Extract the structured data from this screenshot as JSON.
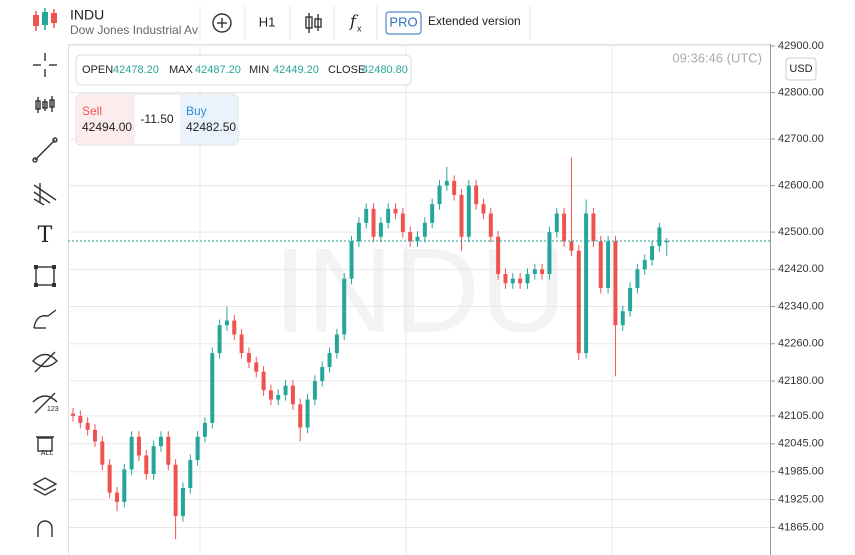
{
  "header": {
    "symbol": "INDU",
    "name": "Dow Jones Industrial Ave",
    "timeframe": "H1",
    "pro": "PRO",
    "extended": "Extended version"
  },
  "time": "09:36:46 (UTC)",
  "currency": "USD",
  "ohlc": {
    "open_label": "OPEN",
    "open": "42478.20",
    "max_label": "MAX",
    "max": "42487.20",
    "min_label": "MIN",
    "min": "42449.20",
    "close_label": "CLOSE",
    "close": "42480.80"
  },
  "trade": {
    "sell_label": "Sell",
    "sell": "42494.00",
    "spread": "-11.50",
    "buy_label": "Buy",
    "buy": "42482.50"
  },
  "watermark": "INDU",
  "chart": {
    "type": "candlestick",
    "ylim": [
      41806,
      42904
    ],
    "up_color": "#26a69a",
    "down_color": "#ef5350",
    "grid": true,
    "yticks": [
      {
        "value": 42900,
        "label": "42900.00"
      },
      {
        "value": 42800,
        "label": "42800.00"
      },
      {
        "value": 42700,
        "label": "42700.00"
      },
      {
        "value": 42600,
        "label": "42600.00"
      },
      {
        "value": 42500,
        "label": "42500.00"
      },
      {
        "value": 42420,
        "label": "42420.00"
      },
      {
        "value": 42340,
        "label": "42340.00"
      },
      {
        "value": 42260,
        "label": "42260.00"
      },
      {
        "value": 42180,
        "label": "42180.00"
      },
      {
        "value": 42105,
        "label": "42105.00"
      },
      {
        "value": 42045,
        "label": "42045.00"
      },
      {
        "value": 41985,
        "label": "41985.00"
      },
      {
        "value": 41925,
        "label": "41925.00"
      },
      {
        "value": 41865,
        "label": "41865.00"
      }
    ],
    "candles": [
      [
        42110,
        42122,
        42093,
        42105
      ],
      [
        42105,
        42117,
        42078,
        42090
      ],
      [
        42090,
        42102,
        42063,
        42075
      ],
      [
        42075,
        42087,
        42038,
        42050
      ],
      [
        42050,
        42062,
        41988,
        42000
      ],
      [
        42000,
        42012,
        41928,
        41940
      ],
      [
        41940,
        41952,
        41900,
        41920
      ],
      [
        41920,
        42002,
        41908,
        41990
      ],
      [
        41990,
        42072,
        41978,
        42060
      ],
      [
        42060,
        42072,
        42008,
        42020
      ],
      [
        42020,
        42032,
        41968,
        41980
      ],
      [
        41980,
        42052,
        41968,
        42040
      ],
      [
        42040,
        42072,
        42028,
        42060
      ],
      [
        42060,
        42072,
        41988,
        42000
      ],
      [
        42000,
        42012,
        41840,
        41890
      ],
      [
        41890,
        41962,
        41878,
        41950
      ],
      [
        41950,
        42022,
        41938,
        42010
      ],
      [
        42010,
        42072,
        41998,
        42060
      ],
      [
        42060,
        42102,
        42048,
        42090
      ],
      [
        42090,
        42252,
        42078,
        42240
      ],
      [
        42240,
        42312,
        42228,
        42300
      ],
      [
        42300,
        42340,
        42288,
        42310
      ],
      [
        42310,
        42322,
        42268,
        42280
      ],
      [
        42280,
        42292,
        42228,
        42240
      ],
      [
        42240,
        42252,
        42208,
        42220
      ],
      [
        42220,
        42232,
        42188,
        42200
      ],
      [
        42200,
        42212,
        42148,
        42160
      ],
      [
        42160,
        42172,
        42128,
        42140
      ],
      [
        42140,
        42162,
        42128,
        42150
      ],
      [
        42150,
        42182,
        42138,
        42170
      ],
      [
        42170,
        42182,
        42118,
        42130
      ],
      [
        42130,
        42142,
        42050,
        42080
      ],
      [
        42080,
        42152,
        42068,
        42140
      ],
      [
        42140,
        42192,
        42128,
        42180
      ],
      [
        42180,
        42222,
        42168,
        42210
      ],
      [
        42210,
        42252,
        42198,
        42240
      ],
      [
        42240,
        42292,
        42228,
        42280
      ],
      [
        42280,
        42412,
        42268,
        42400
      ],
      [
        42400,
        42492,
        42388,
        42480
      ],
      [
        42480,
        42532,
        42468,
        42520
      ],
      [
        42520,
        42562,
        42508,
        42550
      ],
      [
        42550,
        42562,
        42478,
        42490
      ],
      [
        42490,
        42532,
        42478,
        42520
      ],
      [
        42520,
        42562,
        42508,
        42550
      ],
      [
        42550,
        42562,
        42528,
        42540
      ],
      [
        42540,
        42552,
        42488,
        42500
      ],
      [
        42500,
        42512,
        42468,
        42480
      ],
      [
        42480,
        42502,
        42468,
        42490
      ],
      [
        42490,
        42532,
        42478,
        42520
      ],
      [
        42520,
        42572,
        42508,
        42560
      ],
      [
        42560,
        42612,
        42548,
        42600
      ],
      [
        42600,
        42640,
        42588,
        42610
      ],
      [
        42610,
        42622,
        42568,
        42580
      ],
      [
        42580,
        42592,
        42460,
        42490
      ],
      [
        42490,
        42612,
        42478,
        42600
      ],
      [
        42600,
        42612,
        42548,
        42560
      ],
      [
        42560,
        42572,
        42528,
        42540
      ],
      [
        42540,
        42552,
        42478,
        42490
      ],
      [
        42490,
        42502,
        42398,
        42410
      ],
      [
        42410,
        42422,
        42378,
        42390
      ],
      [
        42390,
        42412,
        42378,
        42400
      ],
      [
        42400,
        42412,
        42378,
        42390
      ],
      [
        42390,
        42422,
        42378,
        42410
      ],
      [
        42410,
        42432,
        42398,
        42420
      ],
      [
        42420,
        42432,
        42398,
        42410
      ],
      [
        42410,
        42512,
        42398,
        42500
      ],
      [
        42500,
        42552,
        42488,
        42540
      ],
      [
        42540,
        42552,
        42468,
        42480
      ],
      [
        42480,
        42660,
        42448,
        42460
      ],
      [
        42460,
        42472,
        42225,
        42240
      ],
      [
        42240,
        42570,
        42228,
        42540
      ],
      [
        42540,
        42552,
        42468,
        42480
      ],
      [
        42480,
        42492,
        42368,
        42380
      ],
      [
        42380,
        42492,
        42368,
        42480
      ],
      [
        42480,
        42492,
        42190,
        42300
      ],
      [
        42300,
        42342,
        42288,
        42330
      ],
      [
        42330,
        42392,
        42318,
        42380
      ],
      [
        42380,
        42432,
        42368,
        42420
      ],
      [
        42420,
        42452,
        42408,
        42440
      ],
      [
        42440,
        42482,
        42428,
        42470
      ],
      [
        42470,
        42520,
        42458,
        42510
      ]
    ]
  }
}
